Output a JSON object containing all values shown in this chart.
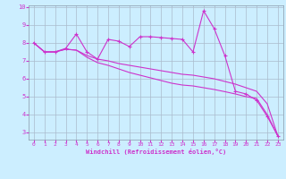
{
  "xlabel": "Windchill (Refroidissement éolien,°C)",
  "x": [
    0,
    1,
    2,
    3,
    4,
    5,
    6,
    7,
    8,
    9,
    10,
    11,
    12,
    13,
    14,
    15,
    16,
    17,
    18,
    19,
    20,
    21,
    22,
    23
  ],
  "line1": [
    8.0,
    7.5,
    7.5,
    7.7,
    8.5,
    7.5,
    7.1,
    8.2,
    8.1,
    7.8,
    8.35,
    8.35,
    8.3,
    8.25,
    8.2,
    7.5,
    9.8,
    8.8,
    7.3,
    5.3,
    5.15,
    4.8,
    3.9,
    2.8
  ],
  "line2": [
    8.0,
    7.5,
    7.5,
    7.65,
    7.6,
    7.3,
    7.1,
    7.0,
    6.85,
    6.75,
    6.65,
    6.55,
    6.45,
    6.35,
    6.25,
    6.2,
    6.1,
    6.0,
    5.85,
    5.7,
    5.5,
    5.3,
    4.6,
    2.8
  ],
  "line3": [
    8.0,
    7.5,
    7.5,
    7.65,
    7.6,
    7.2,
    6.9,
    6.75,
    6.55,
    6.35,
    6.2,
    6.05,
    5.9,
    5.75,
    5.65,
    5.6,
    5.5,
    5.4,
    5.28,
    5.15,
    5.0,
    4.9,
    4.0,
    2.8
  ],
  "line_color": "#cc33cc",
  "marker": "+",
  "bg_color": "#cceeff",
  "grid_color": "#aabbcc",
  "ylim": [
    2.6,
    10.1
  ],
  "xlim": [
    -0.5,
    23.5
  ],
  "yticks": [
    3,
    4,
    5,
    6,
    7,
    8,
    9,
    10
  ],
  "xticks": [
    0,
    1,
    2,
    3,
    4,
    5,
    6,
    7,
    8,
    9,
    10,
    11,
    12,
    13,
    14,
    15,
    16,
    17,
    18,
    19,
    20,
    21,
    22,
    23
  ]
}
